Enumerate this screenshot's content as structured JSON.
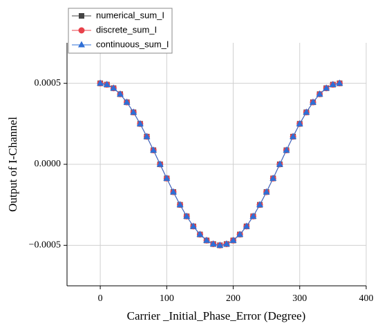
{
  "chart_data": {
    "type": "line",
    "xlabel": "Carrier _Initial_Phase_Error (Degree)",
    "ylabel": "Output of I-Channel",
    "x": [
      0,
      10,
      20,
      30,
      40,
      50,
      60,
      70,
      80,
      90,
      100,
      110,
      120,
      130,
      140,
      150,
      160,
      170,
      180,
      190,
      200,
      210,
      220,
      230,
      240,
      250,
      260,
      270,
      280,
      290,
      300,
      310,
      320,
      330,
      340,
      350,
      360
    ],
    "series": [
      {
        "name": "numerical_sum_I",
        "color": "#444444",
        "marker": "square",
        "values": [
          0.0005,
          0.000492,
          0.00047,
          0.000433,
          0.000383,
          0.000321,
          0.00025,
          0.000171,
          8.7e-05,
          0,
          -8.7e-05,
          -0.000171,
          -0.00025,
          -0.000321,
          -0.000383,
          -0.000433,
          -0.00047,
          -0.000492,
          -0.0005,
          -0.000492,
          -0.00047,
          -0.000433,
          -0.000383,
          -0.000321,
          -0.00025,
          -0.000171,
          -8.7e-05,
          0,
          8.7e-05,
          0.000171,
          0.00025,
          0.000321,
          0.000383,
          0.000433,
          0.00047,
          0.000492,
          0.0005
        ]
      },
      {
        "name": "discrete_sum_I",
        "color": "#e8414a",
        "marker": "circle",
        "values": [
          0.0005,
          0.000492,
          0.00047,
          0.000433,
          0.000383,
          0.000321,
          0.00025,
          0.000171,
          8.7e-05,
          0,
          -8.7e-05,
          -0.000171,
          -0.00025,
          -0.000321,
          -0.000383,
          -0.000433,
          -0.00047,
          -0.000492,
          -0.0005,
          -0.000492,
          -0.00047,
          -0.000433,
          -0.000383,
          -0.000321,
          -0.00025,
          -0.000171,
          -8.7e-05,
          0,
          8.7e-05,
          0.000171,
          0.00025,
          0.000321,
          0.000383,
          0.000433,
          0.00047,
          0.000492,
          0.0005
        ]
      },
      {
        "name": "continuous_sum_I",
        "color": "#2f6fd6",
        "marker": "triangle",
        "values": [
          0.0005,
          0.000492,
          0.00047,
          0.000433,
          0.000383,
          0.000321,
          0.00025,
          0.000171,
          8.7e-05,
          0,
          -8.7e-05,
          -0.000171,
          -0.00025,
          -0.000321,
          -0.000383,
          -0.000433,
          -0.00047,
          -0.000492,
          -0.0005,
          -0.000492,
          -0.00047,
          -0.000433,
          -0.000383,
          -0.000321,
          -0.00025,
          -0.000171,
          -8.7e-05,
          0,
          8.7e-05,
          0.000171,
          0.00025,
          0.000321,
          0.000383,
          0.000433,
          0.00047,
          0.000492,
          0.0005
        ]
      }
    ],
    "xlim": [
      -50,
      400
    ],
    "xticks": [
      0,
      100,
      200,
      300,
      400
    ],
    "ylim": [
      -0.00075,
      0.00075
    ],
    "yticks": [
      {
        "value": -0.0005,
        "label": "−0.0005"
      },
      {
        "value": 0,
        "label": "0.0000"
      },
      {
        "value": 0.0005,
        "label": "0.0005"
      }
    ],
    "grid": true,
    "legend": "top-left"
  }
}
